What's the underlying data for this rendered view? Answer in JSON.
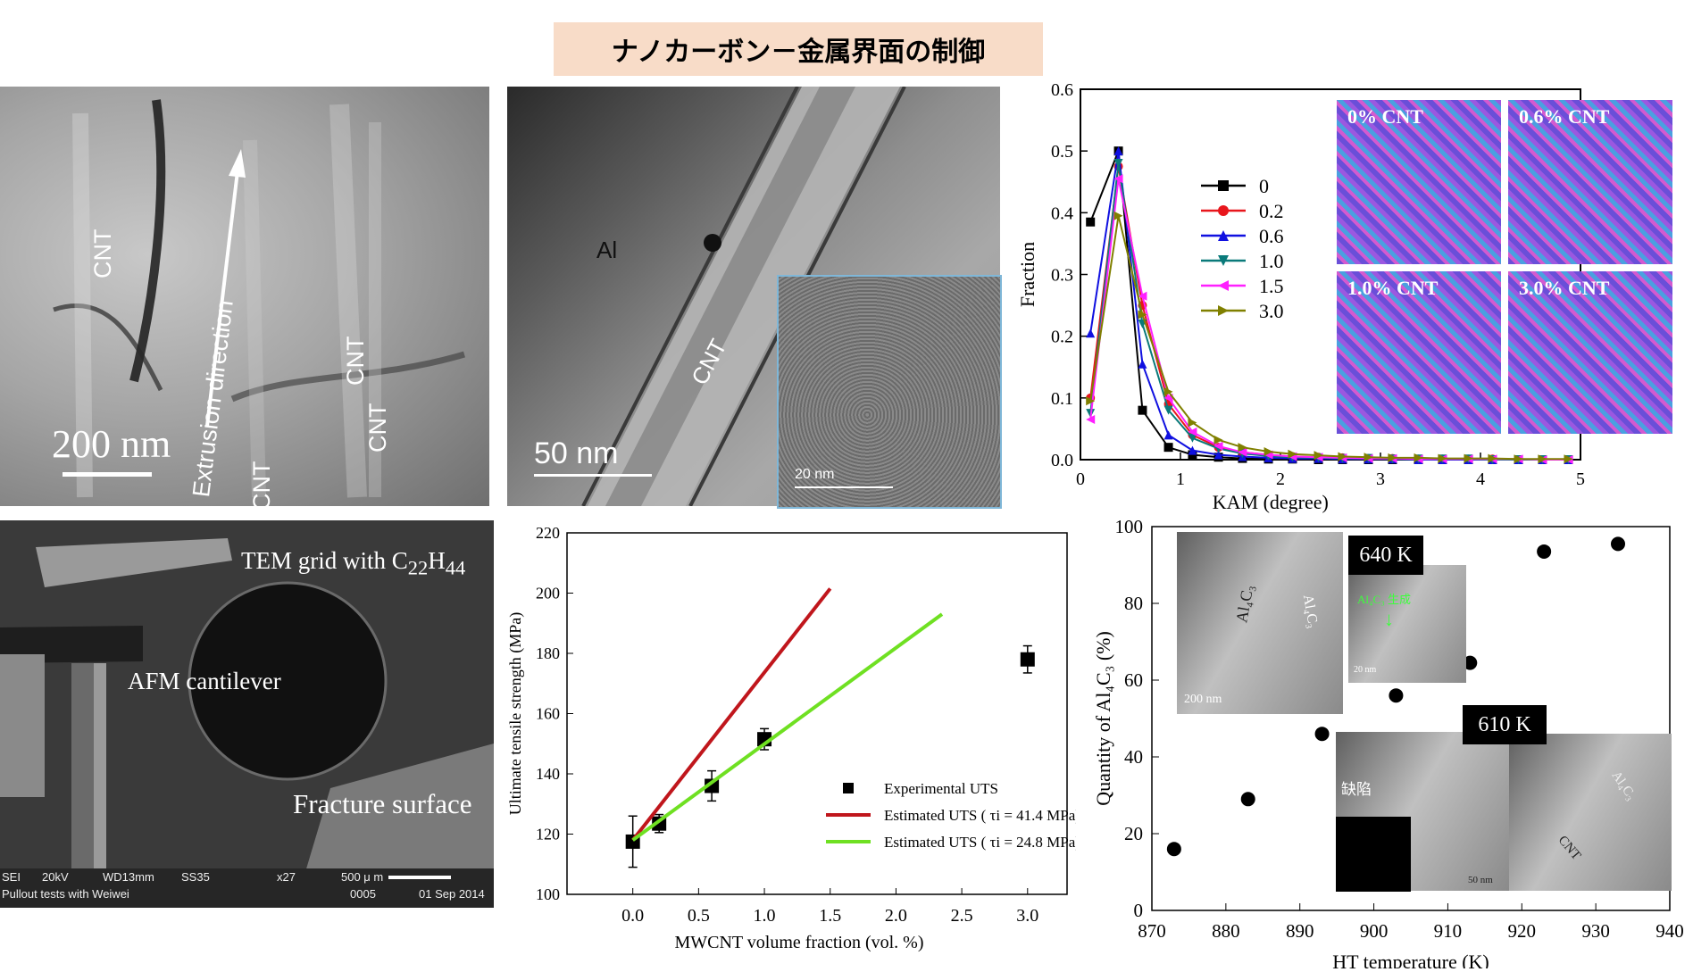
{
  "title": "ナノカーボン－金属界面の制御",
  "tem1": {
    "labels": [
      "CNT",
      "CNT",
      "CNT",
      "CNT"
    ],
    "direction": "Extrusion direction",
    "scale": "200 nm"
  },
  "tem2": {
    "matrix": "Al",
    "tube": "CNT",
    "scale": "50 nm",
    "inset_scale": "20 nm"
  },
  "sem": {
    "grid": "TEM grid with C",
    "grid_sub1": "22",
    "grid_h": "H",
    "grid_sub2": "44",
    "cantilever": "AFM cantilever",
    "fracture": "Fracture surface",
    "info_line1": [
      "SEI",
      "20kV",
      "WD13mm",
      "SS35",
      "x27",
      "500 μ m"
    ],
    "info_line2": [
      "Pullout tests with Weiwei",
      "0005",
      "01 Sep 2014"
    ]
  },
  "ebsd_labels": [
    "0% CNT",
    "0.6% CNT",
    "1.0% CNT",
    "3.0% CNT"
  ],
  "heat_insets": {
    "tag1": "640 K",
    "tag2": "610 K",
    "al4c3": "Al₄C₃",
    "defect": "缺陷",
    "formation": "Al₄C₃ 生成",
    "scale_200": "200 nm",
    "scale_20": "20 nm",
    "scale_50": "50 nm",
    "cnt": "CNT"
  },
  "colors": {
    "title_bg": "#f8dcc8",
    "red": "#c0161c",
    "green": "#6fe022",
    "blue": "#1010e0",
    "teal": "#0a7a7a",
    "magenta": "#ff20ff",
    "olive": "#808000"
  },
  "chart_data": [
    {
      "type": "line",
      "xlabel": "KAM (degree)",
      "ylabel": "Fraction",
      "xlim": [
        0,
        5
      ],
      "ylim": [
        0,
        0.6
      ],
      "xticks": [
        "0",
        "1",
        "2",
        "3",
        "4",
        "5"
      ],
      "yticks": [
        "0.0",
        "0.1",
        "0.2",
        "0.3",
        "0.4",
        "0.5",
        "0.6"
      ],
      "x": [
        0.1,
        0.38,
        0.62,
        0.88,
        1.12,
        1.38,
        1.62,
        1.88,
        2.12,
        2.38,
        2.62,
        2.88,
        3.12,
        3.38,
        3.62,
        3.88,
        4.12,
        4.38,
        4.62,
        4.88
      ],
      "legend_position": "top-left",
      "series": [
        {
          "name": "0",
          "marker": "square",
          "color": "#000000",
          "values": [
            0.385,
            0.5,
            0.08,
            0.02,
            0.008,
            0.004,
            0.002,
            0.001,
            0.001,
            0,
            0,
            0,
            0,
            0,
            0,
            0,
            0,
            0,
            0,
            0
          ]
        },
        {
          "name": "0.2",
          "marker": "circle",
          "color": "#e8161c",
          "values": [
            0.1,
            0.475,
            0.25,
            0.09,
            0.04,
            0.02,
            0.012,
            0.008,
            0.005,
            0.004,
            0.003,
            0.002,
            0.002,
            0.001,
            0.001,
            0.001,
            0.001,
            0,
            0,
            0
          ]
        },
        {
          "name": "0.6",
          "marker": "triangle-up",
          "color": "#1010e0",
          "values": [
            0.205,
            0.5,
            0.155,
            0.04,
            0.015,
            0.008,
            0.005,
            0.003,
            0.002,
            0.002,
            0.001,
            0.001,
            0.001,
            0,
            0,
            0,
            0,
            0,
            0,
            0
          ]
        },
        {
          "name": "1.0",
          "marker": "triangle-down",
          "color": "#0a7a7a",
          "values": [
            0.075,
            0.48,
            0.22,
            0.08,
            0.035,
            0.018,
            0.01,
            0.006,
            0.004,
            0.003,
            0.002,
            0.002,
            0.001,
            0.001,
            0.001,
            0.001,
            0,
            0,
            0,
            0
          ]
        },
        {
          "name": "1.5",
          "marker": "triangle-left",
          "color": "#ff20ff",
          "values": [
            0.065,
            0.455,
            0.265,
            0.1,
            0.045,
            0.022,
            0.012,
            0.008,
            0.005,
            0.004,
            0.003,
            0.002,
            0.002,
            0.001,
            0.001,
            0.001,
            0.001,
            0.001,
            0,
            0
          ]
        },
        {
          "name": "3.0",
          "marker": "triangle-right",
          "color": "#808000",
          "values": [
            0.095,
            0.395,
            0.235,
            0.11,
            0.06,
            0.032,
            0.02,
            0.013,
            0.009,
            0.007,
            0.005,
            0.004,
            0.003,
            0.003,
            0.002,
            0.002,
            0.002,
            0.001,
            0.001,
            0.001
          ]
        }
      ]
    },
    {
      "type": "scatter",
      "xlabel": "MWCNT volume fraction (vol. %)",
      "ylabel": "Ultimate tensile strength (MPa)",
      "xlim": [
        -0.5,
        3.3
      ],
      "ylim": [
        100,
        220
      ],
      "xticks": [
        "0.0",
        "0.5",
        "1.0",
        "1.5",
        "2.0",
        "2.5",
        "3.0"
      ],
      "yticks": [
        "100",
        "120",
        "140",
        "160",
        "180",
        "200",
        "220"
      ],
      "legend_position": "bottom-right",
      "series": [
        {
          "name": "Experimental UTS",
          "marker": "square",
          "color": "#000000",
          "x": [
            0,
            0.2,
            0.6,
            1.0,
            3.0
          ],
          "values": [
            117.5,
            123.5,
            136,
            151.5,
            178
          ],
          "errors": [
            8.5,
            3,
            5,
            3.5,
            4.5
          ]
        },
        {
          "name": "Estimated UTS ( τi = 41.4 MPa)",
          "type": "line",
          "color": "#c0161c",
          "x": [
            0.0,
            1.5
          ],
          "values": [
            118,
            201.5
          ]
        },
        {
          "name": "Estimated UTS ( τi = 24.8 MPa)",
          "type": "line",
          "color": "#6fe022",
          "x": [
            0.0,
            2.35
          ],
          "values": [
            118,
            193
          ]
        }
      ]
    },
    {
      "type": "scatter",
      "xlabel": "HT temperature (K)",
      "ylabel": "Quantity of Al₄C₃ (%)",
      "xlim": [
        870,
        940
      ],
      "ylim": [
        0,
        100
      ],
      "xticks": [
        "870",
        "880",
        "890",
        "900",
        "910",
        "920",
        "930",
        "940"
      ],
      "yticks": [
        "0",
        "20",
        "40",
        "60",
        "80",
        "100"
      ],
      "series": [
        {
          "name": "",
          "marker": "circle",
          "color": "#000000",
          "x": [
            873,
            883,
            893,
            903,
            913,
            923,
            933
          ],
          "values": [
            16,
            29,
            46,
            56,
            64.5,
            93.5,
            95.5
          ]
        }
      ]
    }
  ]
}
